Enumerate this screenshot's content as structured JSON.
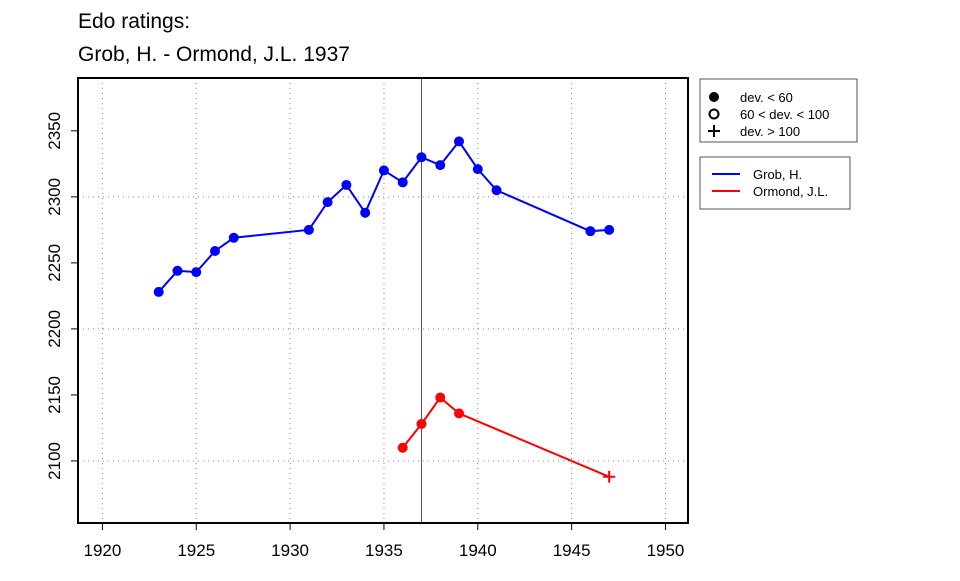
{
  "chart_data": {
    "type": "line",
    "title": [
      "Edo ratings:",
      "Grob, H. - Ormond, J.L. 1937"
    ],
    "xlabel": "",
    "ylabel": "",
    "xlim": [
      1918.7,
      1951.2
    ],
    "ylim": [
      2053,
      2390
    ],
    "xticks": [
      1920,
      1925,
      1930,
      1935,
      1940,
      1945,
      1950
    ],
    "yticks": [
      2100,
      2150,
      2200,
      2250,
      2300,
      2350
    ],
    "xgrid": [
      1920,
      1925,
      1930,
      1935,
      1940,
      1945,
      1950
    ],
    "ygrid": [
      2100,
      2200,
      2300
    ],
    "grid": "dotted",
    "vline": 1937,
    "marker_legend": {
      "placement": "right-top",
      "entries": [
        {
          "symbol": "filled-circle",
          "label": "dev. < 60"
        },
        {
          "symbol": "open-circle",
          "label": "60 < dev. < 100"
        },
        {
          "symbol": "plus",
          "label": "dev. > 100"
        }
      ]
    },
    "series": [
      {
        "name": "Grob, H.",
        "color": "#0000ff",
        "x": [
          1923,
          1924,
          1925,
          1926,
          1927,
          1931,
          1932,
          1933,
          1934,
          1935,
          1936,
          1937,
          1938,
          1939,
          1940,
          1941,
          1946,
          1947
        ],
        "y": [
          2228,
          2244,
          2243,
          2259,
          2269,
          2275,
          2296,
          2309,
          2288,
          2320,
          2311,
          2330,
          2324,
          2342,
          2321,
          2305,
          2274,
          2275
        ],
        "markers": [
          "filled-circle",
          "filled-circle",
          "filled-circle",
          "filled-circle",
          "filled-circle",
          "filled-circle",
          "filled-circle",
          "filled-circle",
          "filled-circle",
          "filled-circle",
          "filled-circle",
          "filled-circle",
          "filled-circle",
          "filled-circle",
          "filled-circle",
          "filled-circle",
          "filled-circle",
          "filled-circle"
        ]
      },
      {
        "name": "Ormond, J.L.",
        "color": "#ff0000",
        "x": [
          1936,
          1937,
          1938,
          1939,
          1947
        ],
        "y": [
          2110,
          2128,
          2148,
          2136,
          2088
        ],
        "markers": [
          "filled-circle",
          "filled-circle",
          "filled-circle",
          "filled-circle",
          "plus"
        ]
      }
    ]
  }
}
